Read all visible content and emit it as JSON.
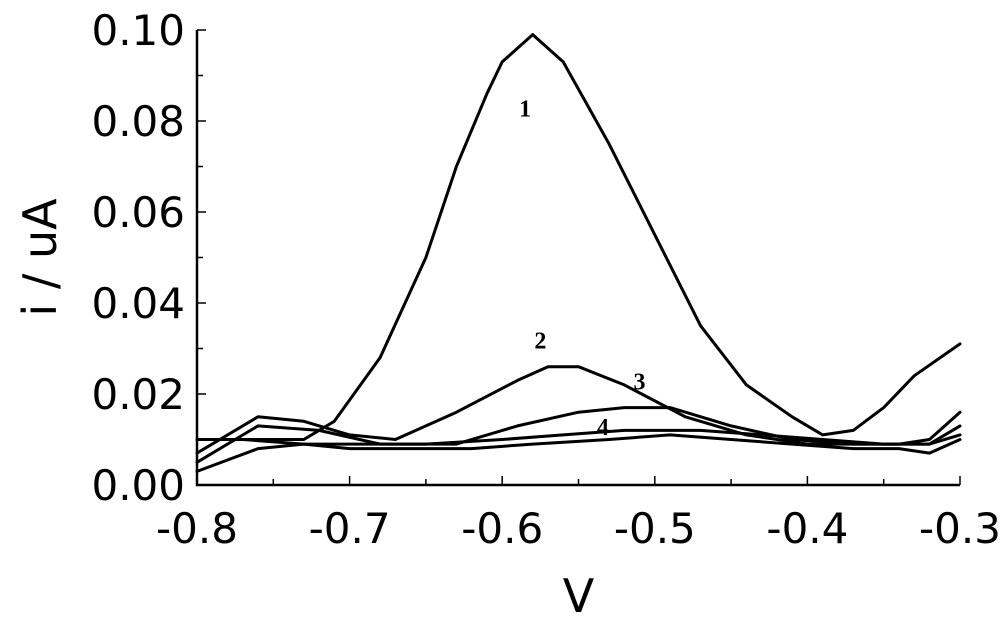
{
  "chart_data": {
    "type": "line",
    "xlabel": "V",
    "ylabel": "i / uA",
    "xlim": [
      -0.8,
      -0.3
    ],
    "ylim": [
      0.0,
      0.1
    ],
    "xticks": [
      -0.8,
      -0.7,
      -0.6,
      -0.5,
      -0.4,
      -0.3
    ],
    "xtick_labels": [
      "-0.8",
      "-0.7",
      "-0.6",
      "-0.5",
      "-0.4",
      "-0.3"
    ],
    "yticks": [
      0.0,
      0.02,
      0.04,
      0.06,
      0.08,
      0.1
    ],
    "ytick_labels": [
      "0.00",
      "0.02",
      "0.04",
      "0.06",
      "0.08",
      "0.10"
    ],
    "grid": false,
    "series": [
      {
        "label": "1",
        "label_at": [
          -0.585,
          0.081
        ],
        "x": [
          -0.8,
          -0.76,
          -0.73,
          -0.71,
          -0.68,
          -0.65,
          -0.63,
          -0.61,
          -0.6,
          -0.58,
          -0.56,
          -0.53,
          -0.5,
          -0.47,
          -0.44,
          -0.41,
          -0.39,
          -0.37,
          -0.35,
          -0.33,
          -0.3
        ],
        "y": [
          0.01,
          0.01,
          0.01,
          0.014,
          0.028,
          0.05,
          0.07,
          0.086,
          0.093,
          0.099,
          0.093,
          0.075,
          0.055,
          0.035,
          0.022,
          0.015,
          0.011,
          0.012,
          0.017,
          0.024,
          0.031
        ]
      },
      {
        "label": "2",
        "label_at": [
          -0.575,
          0.03
        ],
        "x": [
          -0.8,
          -0.76,
          -0.73,
          -0.7,
          -0.67,
          -0.63,
          -0.59,
          -0.57,
          -0.55,
          -0.52,
          -0.48,
          -0.44,
          -0.4,
          -0.37,
          -0.34,
          -0.32,
          -0.3
        ],
        "y": [
          0.007,
          0.015,
          0.014,
          0.011,
          0.01,
          0.016,
          0.023,
          0.026,
          0.026,
          0.022,
          0.015,
          0.011,
          0.009,
          0.009,
          0.009,
          0.01,
          0.016
        ]
      },
      {
        "label": "3",
        "label_at": [
          -0.51,
          0.021
        ],
        "x": [
          -0.8,
          -0.76,
          -0.72,
          -0.68,
          -0.63,
          -0.59,
          -0.55,
          -0.52,
          -0.49,
          -0.45,
          -0.41,
          -0.37,
          -0.34,
          -0.32,
          -0.3
        ],
        "y": [
          0.005,
          0.013,
          0.012,
          0.009,
          0.009,
          0.013,
          0.016,
          0.017,
          0.017,
          0.013,
          0.01,
          0.009,
          0.009,
          0.009,
          0.013
        ]
      },
      {
        "label": "4",
        "label_at": [
          -0.534,
          0.011
        ],
        "x": [
          -0.8,
          -0.76,
          -0.73,
          -0.7,
          -0.65,
          -0.6,
          -0.56,
          -0.52,
          -0.47,
          -0.43,
          -0.39,
          -0.35,
          -0.32,
          -0.3
        ],
        "y": [
          0.003,
          0.008,
          0.009,
          0.009,
          0.009,
          0.01,
          0.011,
          0.012,
          0.012,
          0.011,
          0.01,
          0.009,
          0.009,
          0.011
        ]
      },
      {
        "label": "",
        "label_at": null,
        "x": [
          -0.8,
          -0.77,
          -0.73,
          -0.7,
          -0.66,
          -0.62,
          -0.58,
          -0.53,
          -0.49,
          -0.45,
          -0.41,
          -0.37,
          -0.34,
          -0.32,
          -0.3
        ],
        "y": [
          0.01,
          0.01,
          0.009,
          0.008,
          0.008,
          0.008,
          0.009,
          0.01,
          0.011,
          0.01,
          0.009,
          0.008,
          0.008,
          0.007,
          0.01
        ]
      }
    ]
  }
}
